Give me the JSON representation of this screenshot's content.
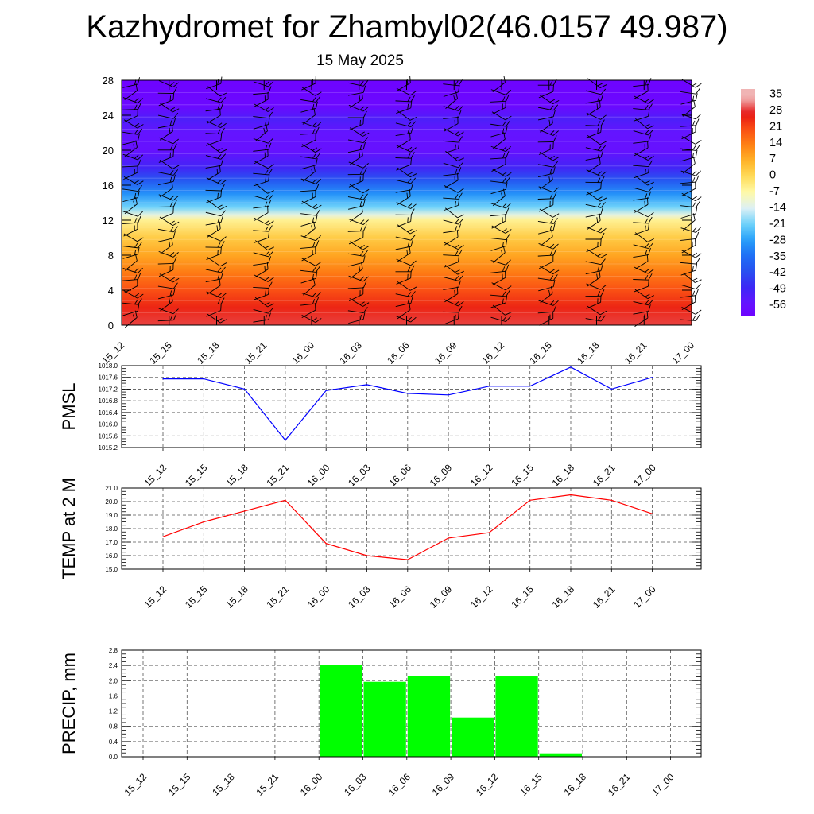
{
  "title": "Kazhydromet for Zhambyl02(46.0157 49.987)",
  "subtitle": "15 May 2025",
  "chart_data": [
    {
      "type": "heatmap",
      "description_source": "vertical profile with wind barbs",
      "x": [
        "15_12",
        "15_15",
        "15_18",
        "15_21",
        "16_00",
        "16_03",
        "16_06",
        "16_09",
        "16_12",
        "16_15",
        "16_18",
        "16_21",
        "17_00"
      ],
      "y_ticks": [
        "0",
        "4",
        "8",
        "12",
        "16",
        "20",
        "24",
        "28"
      ],
      "ylim": [
        0,
        28
      ],
      "color_levels": [
        "35",
        "28",
        "21",
        "14",
        "7",
        "0",
        "-7",
        "-14",
        "-21",
        "-28",
        "-35",
        "-42",
        "-49",
        "-56"
      ],
      "value_profile": [
        {
          "y": 0,
          "v": 30
        },
        {
          "y": 2,
          "v": 26
        },
        {
          "y": 4,
          "v": 21
        },
        {
          "y": 6,
          "v": 15
        },
        {
          "y": 8,
          "v": 9
        },
        {
          "y": 10,
          "v": 3
        },
        {
          "y": 12,
          "v": -5
        },
        {
          "y": 12.6,
          "v": -12
        },
        {
          "y": 13.5,
          "v": -21
        },
        {
          "y": 15,
          "v": -30
        },
        {
          "y": 16.5,
          "v": -40
        },
        {
          "y": 18,
          "v": -50
        },
        {
          "y": 20,
          "v": -57
        },
        {
          "y": 22,
          "v": -56
        },
        {
          "y": 23.5,
          "v": -52
        },
        {
          "y": 25,
          "v": -60
        },
        {
          "y": 28,
          "v": -62
        }
      ]
    },
    {
      "type": "line",
      "ylabel": "PMSL",
      "x": [
        "15_12",
        "15_15",
        "15_18",
        "15_21",
        "16_00",
        "16_03",
        "16_06",
        "16_09",
        "16_12",
        "16_15",
        "16_18",
        "16_21",
        "17_00"
      ],
      "values": [
        1017.55,
        1017.55,
        1017.2,
        1015.45,
        1017.15,
        1017.35,
        1017.05,
        1017.0,
        1017.3,
        1017.3,
        1017.95,
        1017.2,
        1017.6
      ],
      "y_ticks": [
        "1015.2",
        "1015.6",
        "1016.0",
        "1016.4",
        "1016.8",
        "1017.2",
        "1017.6",
        "1018.0"
      ],
      "ylim": [
        1015.2,
        1018.0
      ],
      "color": "#0000ff",
      "grid": true
    },
    {
      "type": "line",
      "ylabel": "TEMP at 2 M",
      "x": [
        "15_12",
        "15_15",
        "15_18",
        "15_21",
        "16_00",
        "16_03",
        "16_06",
        "16_09",
        "16_12",
        "16_15",
        "16_18",
        "16_21",
        "17_00"
      ],
      "values": [
        17.4,
        18.5,
        19.3,
        20.1,
        16.9,
        16.0,
        15.7,
        17.3,
        17.7,
        20.1,
        20.5,
        20.1,
        19.1
      ],
      "y_ticks": [
        "15.0",
        "16.0",
        "17.0",
        "18.0",
        "19.0",
        "20.0",
        "21.0"
      ],
      "ylim": [
        15.0,
        21.0
      ],
      "color": "#ff0000",
      "grid": true
    },
    {
      "type": "bar",
      "ylabel": "PRECIP, mm",
      "categories": [
        "15_12",
        "15_15",
        "15_18",
        "15_21",
        "16_00",
        "16_03",
        "16_06",
        "16_09",
        "16_12",
        "16_15",
        "16_18",
        "16_21",
        "17_00"
      ],
      "values": [
        0,
        0,
        0,
        0,
        2.42,
        1.97,
        2.12,
        1.03,
        2.11,
        0.09,
        0,
        0,
        0
      ],
      "y_ticks": [
        "0.0",
        "0.4",
        "0.8",
        "1.2",
        "1.6",
        "2.0",
        "2.4",
        "2.8"
      ],
      "ylim": [
        0,
        2.8
      ],
      "color": "#00ff00",
      "grid": true
    }
  ],
  "colorbar": {
    "labels": [
      "35",
      "28",
      "21",
      "14",
      "7",
      "0",
      "-7",
      "-14",
      "-21",
      "-28",
      "-35",
      "-42",
      "-49",
      "-56"
    ]
  }
}
